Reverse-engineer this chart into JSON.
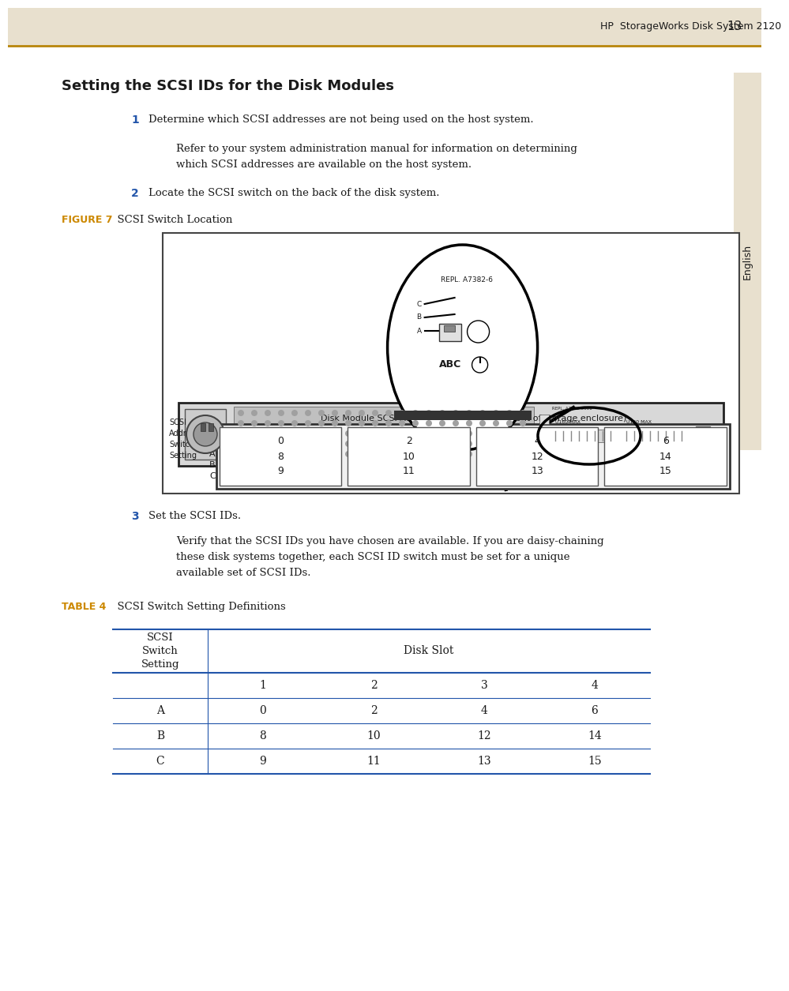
{
  "page_bg": "#ffffff",
  "header_bg": "#e8e0ce",
  "header_text": "HP  StorageWorks Disk System 2120",
  "header_page": "13",
  "header_line_color": "#b8860b",
  "sidebar_bg": "#e8e0ce",
  "sidebar_text": "English",
  "title": "Setting the SCSI IDs for the Disk Modules",
  "step1_num": "1",
  "step1_text": "Determine which SCSI addresses are not being used on the host system.",
  "step1_sub_line1": "Refer to your system administration manual for information on determining",
  "step1_sub_line2": "which SCSI addresses are available on the host system.",
  "step2_num": "2",
  "step2_text": "Locate the SCSI switch on the back of the disk system.",
  "figure_label": "FIGURE 7",
  "figure_title": "  SCSI Switch Location",
  "step3_num": "3",
  "step3_text": "Set the SCSI IDs.",
  "step3_sub_line1": "Verify that the SCSI IDs you have chosen are available. If you are daisy-chaining",
  "step3_sub_line2": "these disk systems together, each SCSI ID switch must be set for a unique",
  "step3_sub_line3": "available set of SCSI IDs.",
  "table_label": "TABLE 4",
  "table_title": "  SCSI Switch Setting Definitions",
  "accent_color": "#cc8800",
  "step_num_color": "#2255aa",
  "table_line_color": "#2255aa",
  "text_color": "#1a1a1a",
  "disk_slot_labels": [
    "0\n8\n9",
    "2\n10\n11",
    "4\n12\n13",
    "6\n14\n15"
  ],
  "table_col1_header": "SCSI\nSwitch\nSetting",
  "table_disk_slot": "Disk Slot",
  "table_subheaders": [
    "1",
    "2",
    "3",
    "4"
  ],
  "table_rows": [
    [
      "A",
      "0",
      "2",
      "4",
      "6"
    ],
    [
      "B",
      "8",
      "10",
      "12",
      "14"
    ],
    [
      "C",
      "9",
      "11",
      "13",
      "15"
    ]
  ]
}
